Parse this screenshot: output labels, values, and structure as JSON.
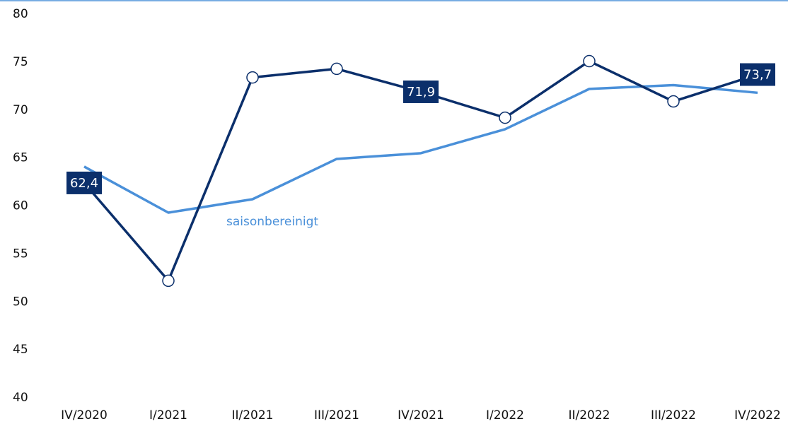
{
  "chart_data": {
    "type": "line",
    "categories": [
      "IV/2020",
      "I/2021",
      "II/2021",
      "III/2021",
      "IV/2021",
      "I/2022",
      "II/2022",
      "III/2022",
      "IV/2022"
    ],
    "series": [
      {
        "color": "#0b2f6b",
        "values": [
          62.4,
          52.2,
          73.4,
          74.3,
          71.9,
          69.2,
          75.1,
          70.9,
          73.7
        ],
        "value_labels": [
          "62,4",
          null,
          null,
          null,
          "71,9",
          null,
          null,
          null,
          "73,7"
        ]
      },
      {
        "name": "saisonbereinigt",
        "color": "#4a90d9",
        "values": [
          64.1,
          59.3,
          60.7,
          64.9,
          65.5,
          68.0,
          72.2,
          72.6,
          71.8
        ]
      }
    ],
    "ylim": [
      40,
      80
    ],
    "yticks": [
      40,
      45,
      50,
      55,
      60,
      65,
      70,
      75,
      80
    ]
  }
}
